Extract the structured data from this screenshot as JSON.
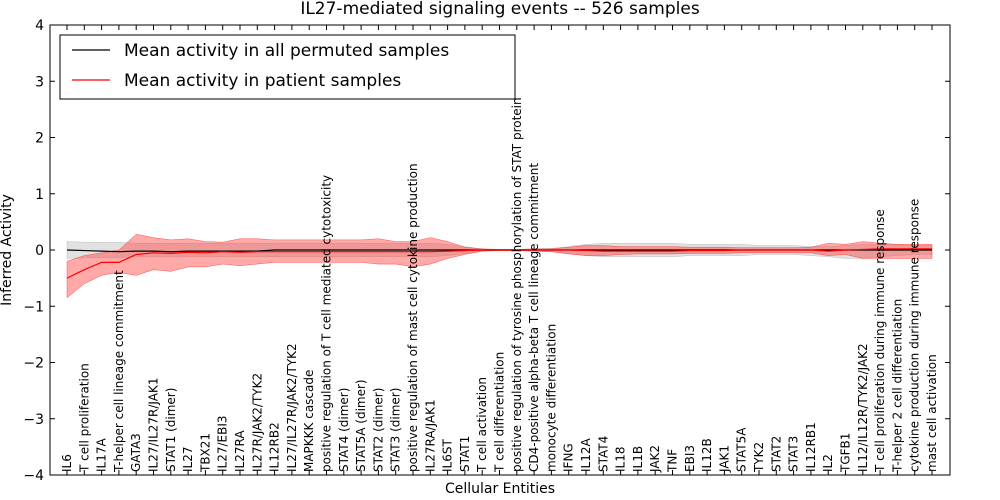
{
  "chart_data": {
    "type": "line",
    "title": "IL27-mediated signaling events -- 526 samples",
    "xlabel": "Cellular Entities",
    "ylabel": "Inferred Activity",
    "ylim": [
      -4,
      4
    ],
    "yticks": [
      -4,
      -3,
      -2,
      -1,
      0,
      1,
      2,
      3,
      4
    ],
    "yticklabels": [
      "−4",
      "−3",
      "−2",
      "−1",
      "0",
      "1",
      "2",
      "3",
      "4"
    ],
    "legend_position": "top-left",
    "categories": [
      "IL6",
      "T cell proliferation",
      "IL17A",
      "T-helper cell lineage commitment",
      "GATA3",
      "IL27/IL27R/JAK1",
      "STAT1 (dimer)",
      "IL27",
      "TBX21",
      "IL27/EBI3",
      "IL27RA",
      "IL27R/JAK2/TYK2",
      "IL12RB2",
      "IL27/IL27R/JAK2/TYK2",
      "MAPKKK cascade",
      "positive regulation of T cell mediated cytotoxicity",
      "STAT4 (dimer)",
      "STAT5A (dimer)",
      "STAT2 (dimer)",
      "STAT3 (dimer)",
      "positive regulation of mast cell cytokine production",
      "IL27RA/JAK1",
      "IL6ST",
      "STAT1",
      "T cell activation",
      "T cell differentiation",
      "positive regulation of tyrosine phosphorylation of STAT protein",
      "CD4-positive alpha-beta T cell lineage commitment",
      "monocyte differentiation",
      "IFNG",
      "IL12A",
      "STAT4",
      "IL18",
      "IL1B",
      "JAK2",
      "TNF",
      "EBI3",
      "IL12B",
      "JAK1",
      "STAT5A",
      "TYK2",
      "STAT2",
      "STAT3",
      "IL12RB1",
      "IL2",
      "TGFB1",
      "IL12/IL12R/TYK2/JAK2",
      "T cell proliferation during immune response",
      "T-helper 2 cell differentiation",
      "cytokine production during immune response",
      "mast cell activation"
    ],
    "series": [
      {
        "name": "Mean activity in all permuted samples",
        "color": "#000000",
        "values": [
          0.0,
          -0.01,
          -0.02,
          -0.03,
          -0.02,
          -0.02,
          -0.03,
          -0.02,
          -0.02,
          -0.02,
          -0.02,
          -0.02,
          0.0,
          0.0,
          0.0,
          0.0,
          0.0,
          0.0,
          0.0,
          0.0,
          0.0,
          0.0,
          0.0,
          0.0,
          0.0,
          0.0,
          0.0,
          0.0,
          0.0,
          0.0,
          0.0,
          0.0,
          0.0,
          0.0,
          0.0,
          0.0,
          0.0,
          0.0,
          0.0,
          0.0,
          0.0,
          0.0,
          0.0,
          0.0,
          0.0,
          0.0,
          0.0,
          0.0,
          0.0,
          0.0,
          0.0
        ],
        "band_upper": [
          0.15,
          0.14,
          0.14,
          0.14,
          0.12,
          0.12,
          0.12,
          0.12,
          0.12,
          0.12,
          0.12,
          0.12,
          0.12,
          0.12,
          0.12,
          0.12,
          0.12,
          0.12,
          0.12,
          0.12,
          0.12,
          0.12,
          0.1,
          0.06,
          0.02,
          0.01,
          0.01,
          0.02,
          0.03,
          0.06,
          0.1,
          0.12,
          0.12,
          0.12,
          0.12,
          0.12,
          0.1,
          0.1,
          0.1,
          0.1,
          0.08,
          0.08,
          0.08,
          0.06,
          0.06,
          0.08,
          0.1,
          0.1,
          0.1,
          0.08,
          0.08
        ],
        "band_lower": [
          -0.15,
          -0.14,
          -0.14,
          -0.14,
          -0.12,
          -0.12,
          -0.12,
          -0.12,
          -0.12,
          -0.12,
          -0.12,
          -0.12,
          -0.12,
          -0.12,
          -0.12,
          -0.12,
          -0.12,
          -0.12,
          -0.12,
          -0.12,
          -0.12,
          -0.12,
          -0.1,
          -0.06,
          -0.02,
          -0.01,
          -0.01,
          -0.02,
          -0.03,
          -0.06,
          -0.1,
          -0.12,
          -0.12,
          -0.12,
          -0.12,
          -0.12,
          -0.1,
          -0.1,
          -0.1,
          -0.1,
          -0.08,
          -0.08,
          -0.08,
          -0.1,
          -0.12,
          -0.15,
          -0.15,
          -0.12,
          -0.1,
          -0.08,
          -0.08
        ]
      },
      {
        "name": "Mean activity in patient samples",
        "color": "#ff0000",
        "values": [
          -0.5,
          -0.35,
          -0.22,
          -0.22,
          -0.08,
          -0.05,
          -0.06,
          -0.04,
          -0.05,
          -0.03,
          -0.04,
          -0.03,
          -0.03,
          -0.03,
          -0.03,
          -0.03,
          -0.03,
          -0.03,
          -0.03,
          -0.03,
          -0.03,
          -0.03,
          -0.02,
          -0.01,
          0.0,
          0.0,
          0.0,
          0.0,
          0.0,
          0.0,
          -0.01,
          -0.02,
          -0.02,
          -0.02,
          -0.02,
          -0.02,
          -0.01,
          -0.01,
          -0.01,
          0.0,
          0.0,
          0.0,
          0.0,
          0.0,
          -0.02,
          0.0,
          0.01,
          0.02,
          0.02,
          0.02,
          0.02
        ],
        "band_upper": [
          -0.2,
          -0.1,
          -0.05,
          0.0,
          0.28,
          0.22,
          0.18,
          0.2,
          0.15,
          0.14,
          0.2,
          0.2,
          0.18,
          0.18,
          0.18,
          0.18,
          0.18,
          0.18,
          0.2,
          0.15,
          0.15,
          0.22,
          0.15,
          0.05,
          0.02,
          0.01,
          0.01,
          0.02,
          0.02,
          0.05,
          0.08,
          0.08,
          0.06,
          0.06,
          0.06,
          0.06,
          0.05,
          0.05,
          0.05,
          0.04,
          0.04,
          0.04,
          0.04,
          0.05,
          0.12,
          0.1,
          0.15,
          0.12,
          0.1,
          0.1,
          0.1
        ],
        "band_lower": [
          -0.85,
          -0.6,
          -0.45,
          -0.4,
          -0.45,
          -0.35,
          -0.38,
          -0.3,
          -0.3,
          -0.25,
          -0.28,
          -0.25,
          -0.22,
          -0.22,
          -0.22,
          -0.22,
          -0.22,
          -0.22,
          -0.25,
          -0.25,
          -0.3,
          -0.25,
          -0.15,
          -0.08,
          -0.02,
          -0.01,
          -0.01,
          -0.02,
          -0.03,
          -0.07,
          -0.1,
          -0.1,
          -0.08,
          -0.07,
          -0.07,
          -0.07,
          -0.06,
          -0.06,
          -0.06,
          -0.05,
          -0.05,
          -0.05,
          -0.05,
          -0.05,
          -0.1,
          -0.08,
          -0.15,
          -0.15,
          -0.15,
          -0.15,
          -0.15
        ]
      }
    ]
  }
}
